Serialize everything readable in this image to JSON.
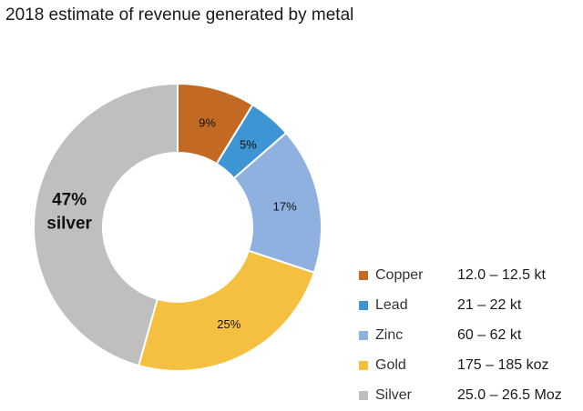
{
  "title": "2018 estimate of revenue generated by metal",
  "chart_data": {
    "type": "pie",
    "donut": true,
    "title": "2018 estimate of revenue generated by metal",
    "slices": [
      {
        "name": "Copper",
        "value": 9,
        "label": "9%",
        "range": "12.0 – 12.5 kt",
        "color": "#c26a24"
      },
      {
        "name": "Lead",
        "value": 5,
        "label": "5%",
        "range": "21 – 22 kt",
        "color": "#3d95d4"
      },
      {
        "name": "Zinc",
        "value": 17,
        "label": "17%",
        "range": "60 – 62 kt",
        "color": "#8eb1e0"
      },
      {
        "name": "Gold",
        "value": 25,
        "label": "25%",
        "range": "175 – 185 koz",
        "color": "#f5c040"
      },
      {
        "name": "Silver",
        "value": 47,
        "label": "47%",
        "sublabel": "silver",
        "range": "25.0 – 26.5 Moz",
        "color": "#bfbfbf"
      }
    ],
    "legend": "bottom-right"
  }
}
